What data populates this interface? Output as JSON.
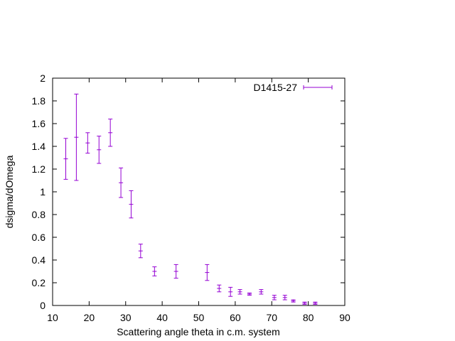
{
  "chart_data": {
    "type": "scatter",
    "title": "",
    "xlabel": "Scattering angle theta in c.m. system",
    "ylabel": "dsigma/dOmega",
    "xlim": [
      10,
      90
    ],
    "ylim": [
      0,
      2
    ],
    "xticks": [
      10,
      20,
      30,
      40,
      50,
      60,
      70,
      80,
      90
    ],
    "yticks": [
      0,
      0.2,
      0.4,
      0.6,
      0.8,
      1,
      1.2,
      1.4,
      1.6,
      1.8,
      2
    ],
    "xtick_labels": [
      "10",
      "20",
      "30",
      "40",
      "50",
      "60",
      "70",
      "80",
      "90"
    ],
    "ytick_labels": [
      "0",
      "0.2",
      "0.4",
      "0.6",
      "0.8",
      "1",
      "1.2",
      "1.4",
      "1.6",
      "1.8",
      "2"
    ],
    "grid": false,
    "legend_position": "top-right",
    "colors": {
      "series": "#9400d3",
      "axes": "#000000"
    },
    "series": [
      {
        "name": "D1415-27",
        "style": "points-with-yerrorbars",
        "points": [
          {
            "x": 13.6,
            "y": 1.29,
            "err": 0.18
          },
          {
            "x": 16.5,
            "y": 1.48,
            "err": 0.38
          },
          {
            "x": 19.6,
            "y": 1.43,
            "err": 0.09
          },
          {
            "x": 22.7,
            "y": 1.37,
            "err": 0.12
          },
          {
            "x": 25.8,
            "y": 1.52,
            "err": 0.12
          },
          {
            "x": 28.7,
            "y": 1.08,
            "err": 0.13
          },
          {
            "x": 31.5,
            "y": 0.89,
            "err": 0.12
          },
          {
            "x": 34.1,
            "y": 0.48,
            "err": 0.06
          },
          {
            "x": 37.9,
            "y": 0.3,
            "err": 0.04
          },
          {
            "x": 43.8,
            "y": 0.3,
            "err": 0.06
          },
          {
            "x": 52.3,
            "y": 0.29,
            "err": 0.07
          },
          {
            "x": 55.6,
            "y": 0.15,
            "err": 0.03
          },
          {
            "x": 58.7,
            "y": 0.12,
            "err": 0.04
          },
          {
            "x": 61.3,
            "y": 0.12,
            "err": 0.02
          },
          {
            "x": 63.9,
            "y": 0.1,
            "err": 0.01
          },
          {
            "x": 67.1,
            "y": 0.12,
            "err": 0.02
          },
          {
            "x": 70.7,
            "y": 0.07,
            "err": 0.02
          },
          {
            "x": 73.6,
            "y": 0.07,
            "err": 0.02
          },
          {
            "x": 75.9,
            "y": 0.04,
            "err": 0.01
          },
          {
            "x": 79.0,
            "y": 0.02,
            "err": 0.01
          },
          {
            "x": 81.9,
            "y": 0.02,
            "err": 0.01
          }
        ]
      }
    ]
  }
}
